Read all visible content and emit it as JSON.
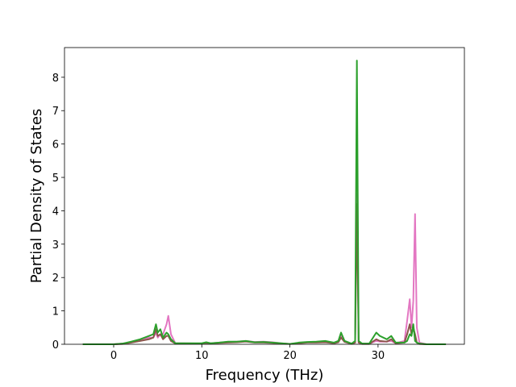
{
  "chart_data": {
    "type": "line",
    "xlabel": "Frequency (THz)",
    "ylabel": "Partial Density of States",
    "x": [
      -3.5,
      0,
      1,
      2,
      3,
      4,
      4.5,
      4.8,
      5,
      5.3,
      5.6,
      6,
      6.2,
      6.5,
      7,
      8,
      10,
      10.5,
      11,
      12,
      13,
      14,
      15,
      16,
      17,
      18,
      19,
      20,
      21,
      22,
      23,
      24,
      25,
      25.5,
      25.8,
      26.2,
      27,
      27.4,
      27.6,
      27.8,
      28.2,
      29,
      29.8,
      30.2,
      31,
      31.5,
      32,
      33,
      33.3,
      33.6,
      33.8,
      34.0,
      34.2,
      34.4,
      34.7,
      35.5,
      37.7
    ],
    "series": [
      {
        "color": "#e377c2",
        "values": [
          0,
          0,
          0.02,
          0.06,
          0.12,
          0.2,
          0.2,
          0.35,
          0.2,
          0.3,
          0.3,
          0.6,
          0.85,
          0.3,
          0.03,
          0.03,
          0.02,
          0.05,
          0.03,
          0.05,
          0.07,
          0.08,
          0.1,
          0.07,
          0.08,
          0.06,
          0.03,
          0.01,
          0.04,
          0.06,
          0.06,
          0.08,
          0.04,
          0.08,
          0.25,
          0.1,
          0.02,
          0.05,
          4.5,
          0.05,
          0.02,
          0.02,
          0.1,
          0.08,
          0.08,
          0.1,
          0.03,
          0.1,
          0.7,
          1.35,
          0.5,
          1.3,
          3.9,
          0.5,
          0.05,
          0,
          0
        ]
      },
      {
        "color": "#8c564b",
        "values": [
          0,
          0,
          0.01,
          0.05,
          0.1,
          0.15,
          0.2,
          0.45,
          0.25,
          0.3,
          0.15,
          0.25,
          0.25,
          0.1,
          0.02,
          0.02,
          0.02,
          0.04,
          0.02,
          0.04,
          0.05,
          0.06,
          0.08,
          0.05,
          0.05,
          0.04,
          0.02,
          0.01,
          0.03,
          0.05,
          0.05,
          0.06,
          0.03,
          0.06,
          0.2,
          0.07,
          0.01,
          0.05,
          4.2,
          0.05,
          0.01,
          0.01,
          0.15,
          0.1,
          0.08,
          0.15,
          0.03,
          0.05,
          0.3,
          0.6,
          0.3,
          0.5,
          0.3,
          0.05,
          0.01,
          0,
          0
        ]
      },
      {
        "color": "#2ca02c",
        "values": [
          0,
          0,
          0.02,
          0.08,
          0.15,
          0.25,
          0.3,
          0.6,
          0.35,
          0.45,
          0.2,
          0.35,
          0.3,
          0.15,
          0.03,
          0.03,
          0.03,
          0.06,
          0.03,
          0.05,
          0.08,
          0.08,
          0.1,
          0.06,
          0.07,
          0.05,
          0.03,
          0.01,
          0.05,
          0.07,
          0.08,
          0.1,
          0.05,
          0.1,
          0.35,
          0.1,
          0.02,
          0.1,
          8.5,
          0.1,
          0.02,
          0.02,
          0.35,
          0.25,
          0.15,
          0.25,
          0.05,
          0.05,
          0.1,
          0.3,
          0.25,
          0.6,
          0.1,
          0.05,
          0.02,
          0,
          0
        ]
      }
    ],
    "xlim": [
      -5.58,
      39.8
    ],
    "ylim": [
      0,
      8.89
    ],
    "xticks": [
      0,
      10,
      20,
      30
    ],
    "yticks": [
      0,
      1,
      2,
      3,
      4,
      5,
      6,
      7,
      8
    ]
  }
}
